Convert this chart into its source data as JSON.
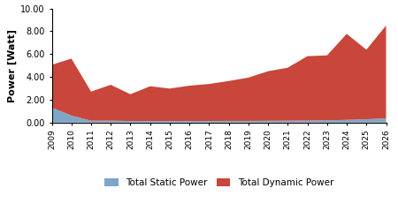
{
  "years": [
    2009,
    2010,
    2011,
    2012,
    2013,
    2014,
    2015,
    2016,
    2017,
    2018,
    2019,
    2020,
    2021,
    2022,
    2023,
    2024,
    2025,
    2026
  ],
  "static_power": [
    1.3,
    0.6,
    0.15,
    0.15,
    0.12,
    0.12,
    0.12,
    0.12,
    0.12,
    0.13,
    0.13,
    0.14,
    0.15,
    0.16,
    0.18,
    0.22,
    0.28,
    0.35
  ],
  "dynamic_power": [
    3.75,
    5.0,
    2.55,
    3.15,
    2.35,
    3.05,
    2.85,
    3.1,
    3.25,
    3.5,
    3.8,
    4.35,
    4.65,
    5.65,
    5.7,
    7.55,
    6.1,
    8.15
  ],
  "static_color": "#7ea6c8",
  "dynamic_color": "#c9463a",
  "ylabel": "Power [Watt]",
  "ylim": [
    0,
    10.0
  ],
  "yticks": [
    0.0,
    2.0,
    4.0,
    6.0,
    8.0,
    10.0
  ],
  "legend_static": "Total Static Power",
  "legend_dynamic": "Total Dynamic Power",
  "background_color": "#ffffff"
}
